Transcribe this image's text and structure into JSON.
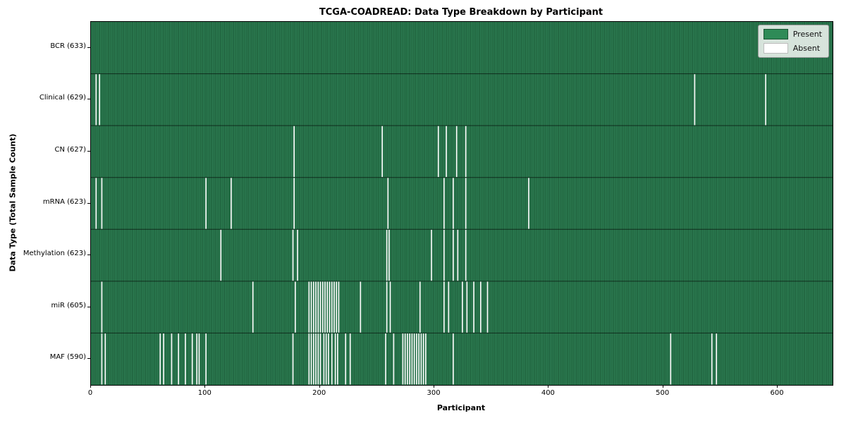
{
  "chart_data": {
    "type": "heatmap",
    "title": "TCGA-COADREAD: Data Type Breakdown by Participant",
    "xlabel": "Participant",
    "ylabel": "Data Type (Total Sample Count)",
    "x_ticks": [
      0,
      100,
      200,
      300,
      400,
      500,
      600
    ],
    "x_axis_max": 648,
    "n_participants": 633,
    "legend": {
      "present_label": "Present",
      "absent_label": "Absent",
      "position": "upper right"
    },
    "colors": {
      "present_fill": "#2e8055",
      "present_edge": "#17512f",
      "absent_fill": "#ffffff",
      "row_divider": "rgba(0,0,0,0.6)",
      "legend_green": "#2e8b57",
      "legend_green_border": "#1b5434",
      "absent_border": "#bbbbbb"
    },
    "rows": [
      {
        "label": "BCR (633)",
        "name": "BCR",
        "total": 633,
        "absent": []
      },
      {
        "label": "Clinical (629)",
        "name": "Clinical",
        "total": 629,
        "absent": [
          4,
          7,
          527,
          589
        ]
      },
      {
        "label": "CN (627)",
        "name": "CN",
        "total": 627,
        "absent": [
          177,
          254,
          303,
          310,
          319,
          327
        ]
      },
      {
        "label": "mRNA (623)",
        "name": "mRNA",
        "total": 623,
        "absent": [
          4,
          9,
          100,
          122,
          177,
          259,
          308,
          316,
          327,
          382
        ]
      },
      {
        "label": "Methylation (623)",
        "name": "Methylation",
        "total": 623,
        "absent": [
          113,
          176,
          180,
          258,
          260,
          297,
          308,
          316,
          320,
          327
        ]
      },
      {
        "label": "miR (605)",
        "name": "miR",
        "total": 605,
        "absent": [
          9,
          141,
          178,
          190,
          192,
          194,
          196,
          198,
          200,
          202,
          204,
          206,
          208,
          210,
          212,
          214,
          216,
          235,
          258,
          261,
          287,
          308,
          312,
          324,
          328,
          334,
          340,
          346
        ]
      },
      {
        "label": "MAF (590)",
        "name": "MAF",
        "total": 590,
        "absent": [
          9,
          12,
          60,
          63,
          70,
          76,
          82,
          88,
          92,
          94,
          100,
          176,
          190,
          192,
          194,
          196,
          198,
          200,
          203,
          205,
          207,
          210,
          213,
          215,
          222,
          226,
          257,
          264,
          272,
          274,
          276,
          278,
          280,
          282,
          284,
          286,
          288,
          290,
          292,
          316,
          506,
          542,
          546
        ]
      }
    ]
  }
}
